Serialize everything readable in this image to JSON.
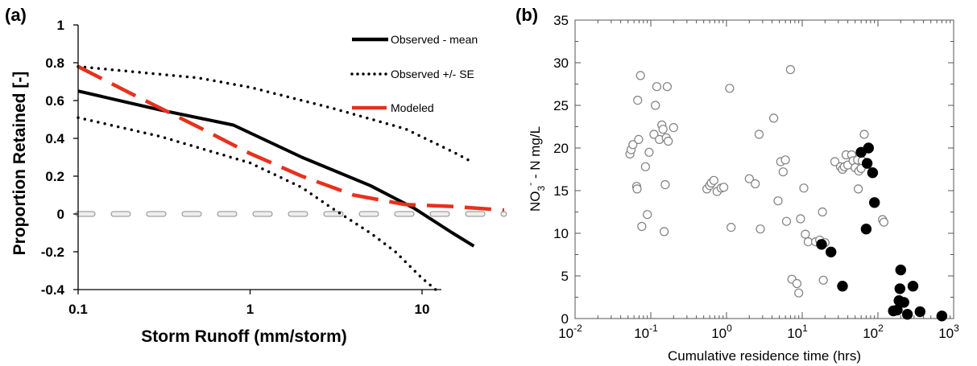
{
  "chart_data": [
    {
      "panel_label": "(a)",
      "type": "line",
      "xlabel": "Storm Runoff (mm/storm)",
      "ylabel": "Proportion Retained [-]",
      "x_scale": "log",
      "xlim": [
        0.1,
        40
      ],
      "ylim": [
        -0.4,
        1.0
      ],
      "x_tick_values": [
        0.1,
        1,
        10
      ],
      "x_tick_labels": [
        "0.1",
        "1",
        "10"
      ],
      "y_tick_values": [
        -0.4,
        -0.2,
        0,
        0.2,
        0.4,
        0.6,
        0.8,
        1.0
      ],
      "y_tick_labels": [
        "-0.4",
        "-0.2",
        "0",
        "0.2",
        "0.4",
        "0.6",
        "0.8",
        "1"
      ],
      "grid": false,
      "legend_position": "top-right",
      "colors": {
        "mean": "#000000",
        "se": "#000000",
        "modeled": "#e8301c",
        "zero_line": "#c8c8c8"
      },
      "series": [
        {
          "name": "Observed - mean",
          "style": "solid",
          "x": [
            0.1,
            0.3,
            0.8,
            2,
            5,
            9,
            15,
            20
          ],
          "y": [
            0.65,
            0.55,
            0.47,
            0.3,
            0.15,
            0.03,
            -0.1,
            -0.17
          ]
        },
        {
          "name": "Observed +/- SE",
          "style": "dotted",
          "x": [
            0.1,
            0.5,
            1,
            3,
            8,
            15,
            20
          ],
          "y": [
            0.78,
            0.72,
            0.67,
            0.56,
            0.45,
            0.33,
            0.27
          ]
        },
        {
          "name": "",
          "style": "dotted",
          "x": [
            0.1,
            0.3,
            1,
            2,
            3,
            5,
            7,
            10,
            12
          ],
          "y": [
            0.51,
            0.41,
            0.27,
            0.14,
            0.03,
            -0.1,
            -0.2,
            -0.34,
            -0.4
          ]
        },
        {
          "name": "Modeled",
          "style": "dashed",
          "x": [
            0.1,
            0.2,
            0.5,
            1,
            2,
            4,
            8,
            15,
            30
          ],
          "y": [
            0.78,
            0.64,
            0.46,
            0.32,
            0.2,
            0.1,
            0.05,
            0.04,
            0.02
          ]
        },
        {
          "name": "",
          "style": "dashed-zero",
          "x": [
            0.1,
            30
          ],
          "y": [
            0,
            0
          ]
        }
      ]
    },
    {
      "panel_label": "(b)",
      "type": "scatter",
      "xlabel": "Cumulative residence time (hrs)",
      "ylabel_parts": [
        "NO",
        "3",
        "-",
        " - N mg/L"
      ],
      "x_scale": "log",
      "xlim": [
        0.01,
        1000
      ],
      "ylim": [
        0,
        35
      ],
      "x_tick_bases": [
        "10",
        "10",
        "10",
        "10",
        "10",
        "10"
      ],
      "x_tick_exponents": [
        "-2",
        "-1",
        "0",
        "1",
        "2",
        "3"
      ],
      "y_tick_labels": [
        "0",
        "5",
        "10",
        "15",
        "20",
        "25",
        "30",
        "35"
      ],
      "grid": false,
      "colors": {
        "open_marker": "#808080",
        "filled_marker": "#000000"
      },
      "series": [
        {
          "marker": "open",
          "points": [
            [
              0.053,
              19.3
            ],
            [
              0.055,
              19.8
            ],
            [
              0.058,
              20.4
            ],
            [
              0.065,
              15.5
            ],
            [
              0.066,
              15.2
            ],
            [
              0.067,
              25.6
            ],
            [
              0.069,
              21.0
            ],
            [
              0.073,
              28.5
            ],
            [
              0.076,
              10.8
            ],
            [
              0.085,
              17.8
            ],
            [
              0.09,
              12.2
            ],
            [
              0.095,
              19.5
            ],
            [
              0.11,
              21.6
            ],
            [
              0.115,
              25.0
            ],
            [
              0.12,
              27.2
            ],
            [
              0.13,
              21.0
            ],
            [
              0.14,
              22.7
            ],
            [
              0.145,
              22.2
            ],
            [
              0.15,
              10.2
            ],
            [
              0.155,
              15.7
            ],
            [
              0.16,
              21.2
            ],
            [
              0.165,
              27.2
            ],
            [
              0.17,
              20.8
            ],
            [
              0.2,
              22.4
            ],
            [
              0.55,
              15.2
            ],
            [
              0.6,
              15.6
            ],
            [
              0.63,
              15.9
            ],
            [
              0.68,
              16.2
            ],
            [
              0.75,
              14.9
            ],
            [
              0.85,
              15.3
            ],
            [
              0.92,
              15.4
            ],
            [
              1.1,
              27.0
            ],
            [
              1.15,
              10.7
            ],
            [
              2.0,
              16.4
            ],
            [
              2.4,
              15.8
            ],
            [
              2.7,
              21.6
            ],
            [
              2.8,
              10.5
            ],
            [
              4.2,
              23.5
            ],
            [
              4.8,
              13.8
            ],
            [
              5.2,
              18.4
            ],
            [
              5.6,
              17.2
            ],
            [
              6.0,
              18.6
            ],
            [
              6.2,
              11.4
            ],
            [
              7.0,
              29.2
            ],
            [
              7.3,
              4.6
            ],
            [
              8.5,
              4.1
            ],
            [
              9.0,
              3.0
            ],
            [
              9.5,
              11.7
            ],
            [
              10.5,
              15.3
            ],
            [
              11.0,
              9.9
            ],
            [
              12.0,
              9.0
            ],
            [
              15.0,
              9.0
            ],
            [
              17.0,
              9.2
            ],
            [
              18.5,
              12.5
            ],
            [
              19.0,
              4.5
            ],
            [
              20.0,
              8.9
            ],
            [
              27.0,
              18.4
            ],
            [
              32.0,
              17.8
            ],
            [
              34.0,
              17.5
            ],
            [
              36.0,
              17.8
            ],
            [
              38.0,
              19.2
            ],
            [
              40.0,
              18.0
            ],
            [
              45.0,
              19.2
            ],
            [
              47.0,
              18.5
            ],
            [
              50.0,
              17.7
            ],
            [
              54.0,
              18.6
            ],
            [
              55.0,
              15.2
            ],
            [
              56.0,
              17.3
            ],
            [
              60.0,
              17.6
            ],
            [
              62.0,
              18.5
            ],
            [
              66.0,
              21.6
            ],
            [
              115.0,
              11.6
            ],
            [
              120.0,
              11.3
            ]
          ]
        },
        {
          "marker": "filled",
          "points": [
            [
              18.0,
              8.7
            ],
            [
              24.0,
              7.8
            ],
            [
              34.0,
              3.8
            ],
            [
              60.0,
              19.5
            ],
            [
              70.0,
              10.5
            ],
            [
              72.0,
              18.2
            ],
            [
              75.0,
              20.0
            ],
            [
              85.0,
              17.1
            ],
            [
              90.0,
              13.6
            ],
            [
              160.0,
              0.9
            ],
            [
              180.0,
              1.0
            ],
            [
              190.0,
              2.1
            ],
            [
              195.0,
              3.5
            ],
            [
              200.0,
              5.7
            ],
            [
              220.0,
              1.9
            ],
            [
              245.0,
              0.5
            ],
            [
              290.0,
              3.8
            ],
            [
              360.0,
              0.8
            ],
            [
              700.0,
              0.3
            ]
          ]
        }
      ]
    }
  ]
}
